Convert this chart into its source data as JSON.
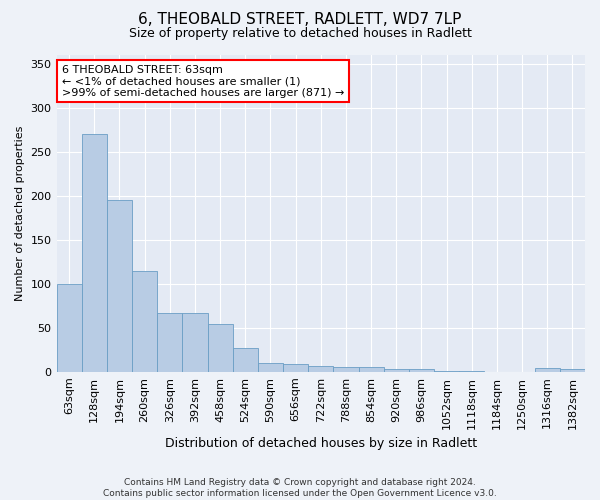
{
  "title": "6, THEOBALD STREET, RADLETT, WD7 7LP",
  "subtitle": "Size of property relative to detached houses in Radlett",
  "xlabel": "Distribution of detached houses by size in Radlett",
  "ylabel": "Number of detached properties",
  "categories": [
    "63sqm",
    "128sqm",
    "194sqm",
    "260sqm",
    "326sqm",
    "392sqm",
    "458sqm",
    "524sqm",
    "590sqm",
    "656sqm",
    "722sqm",
    "788sqm",
    "854sqm",
    "920sqm",
    "986sqm",
    "1052sqm",
    "1118sqm",
    "1184sqm",
    "1250sqm",
    "1316sqm",
    "1382sqm"
  ],
  "values": [
    100,
    270,
    195,
    115,
    67,
    67,
    54,
    27,
    10,
    9,
    7,
    5,
    5,
    3,
    3,
    1,
    1,
    0,
    0,
    4,
    3
  ],
  "bar_color": "#b8cce4",
  "bar_edge_color": "#6a9ec5",
  "annotation_line1": "6 THEOBALD STREET: 63sqm",
  "annotation_line2": "← <1% of detached houses are smaller (1)",
  "annotation_line3": ">99% of semi-detached houses are larger (871) →",
  "annotation_box_color": "white",
  "annotation_box_edge_color": "red",
  "ylim": [
    0,
    360
  ],
  "yticks": [
    0,
    50,
    100,
    150,
    200,
    250,
    300,
    350
  ],
  "footnote_line1": "Contains HM Land Registry data © Crown copyright and database right 2024.",
  "footnote_line2": "Contains public sector information licensed under the Open Government Licence v3.0.",
  "background_color": "#eef2f8",
  "plot_bg_color": "#e4eaf4",
  "title_fontsize": 11,
  "subtitle_fontsize": 9,
  "ylabel_fontsize": 8,
  "xlabel_fontsize": 9,
  "tick_fontsize": 8,
  "annotation_fontsize": 8,
  "footnote_fontsize": 6.5
}
